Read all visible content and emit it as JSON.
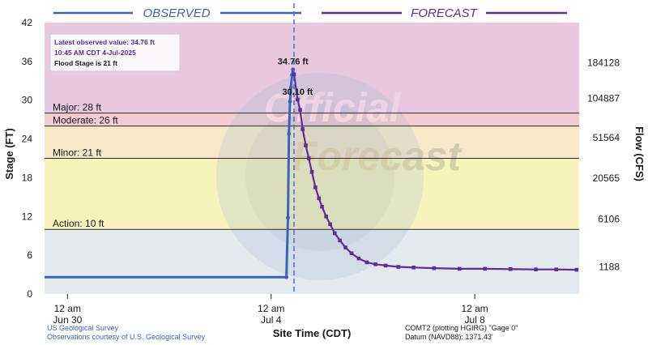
{
  "chart_data": {
    "type": "line",
    "header": {
      "observed_label": "OBSERVED",
      "forecast_label": "FORECAST"
    },
    "ylabel": "Stage (FT)",
    "ylabel_right": "Flow (CFS)",
    "xlabel": "Site Time (CDT)",
    "ylim": [
      0,
      42
    ],
    "y_ticks": [
      0,
      6,
      12,
      18,
      24,
      30,
      36,
      42
    ],
    "right_ticks": [
      {
        "stage": 4.2,
        "label": "1188"
      },
      {
        "stage": 11.6,
        "label": "6106"
      },
      {
        "stage": 17.9,
        "label": "20565"
      },
      {
        "stage": 24.2,
        "label": "51564"
      },
      {
        "stage": 30.3,
        "label": "104887"
      },
      {
        "stage": 35.8,
        "label": "184128"
      }
    ],
    "x_ticks": [
      {
        "day": 0,
        "line1": "12 am",
        "line2": "Jun 30"
      },
      {
        "day": 4,
        "line1": "12 am",
        "line2": "Jul 4"
      },
      {
        "day": 8,
        "line1": "12 am",
        "line2": "Jul 8"
      }
    ],
    "xlim": [
      -0.45,
      10.05
    ],
    "current_time_day": 4.45,
    "bands": [
      {
        "from": 28,
        "to": 42,
        "color": "#e7c8de"
      },
      {
        "from": 26,
        "to": 28,
        "color": "#f2cdd0"
      },
      {
        "from": 21,
        "to": 26,
        "color": "#f7e8c8"
      },
      {
        "from": 10,
        "to": 21,
        "color": "#f6f3bd"
      },
      {
        "from": 0,
        "to": 10,
        "color": "#e4e9ee"
      }
    ],
    "flood_lines": [
      {
        "stage": 28,
        "label": "Major: 28 ft"
      },
      {
        "stage": 26,
        "label": "Moderate: 26 ft"
      },
      {
        "stage": 21,
        "label": "Minor: 21 ft"
      },
      {
        "stage": 10,
        "label": "Action: 10 ft"
      }
    ],
    "info_box": {
      "line1": "Latest observed value: 34.76 ft",
      "line2": "10:45 AM CDT 4-Jul-2025",
      "line3": "Flood Stage is 21 ft"
    },
    "annotations": [
      {
        "x": 4.43,
        "y": 34.76,
        "text": "34.76 ft"
      },
      {
        "x": 4.52,
        "y": 30.1,
        "text": "30.10 ft"
      }
    ],
    "series": [
      {
        "name": "Observed",
        "color": "#3a63b8",
        "x": [
          -0.45,
          0.5,
          1.5,
          2.5,
          3.5,
          4.0,
          4.3,
          4.33,
          4.35,
          4.37,
          4.39,
          4.41,
          4.43
        ],
        "y": [
          2.6,
          2.6,
          2.6,
          2.6,
          2.6,
          2.6,
          2.6,
          11.8,
          24.8,
          29.8,
          32.0,
          33.9,
          34.76
        ]
      },
      {
        "name": "Forecast",
        "color": "#5e2d97",
        "x": [
          4.45,
          4.52,
          4.57,
          4.62,
          4.68,
          4.74,
          4.8,
          4.87,
          4.94,
          5.0,
          5.08,
          5.16,
          5.25,
          5.35,
          5.46,
          5.58,
          5.72,
          5.88,
          6.05,
          6.25,
          6.5,
          6.8,
          7.2,
          7.7,
          8.2,
          8.7,
          9.2,
          9.6,
          10.0
        ],
        "y": [
          34.0,
          30.1,
          28.5,
          25.5,
          23.0,
          21.0,
          18.9,
          16.5,
          14.8,
          13.5,
          12.0,
          10.8,
          9.4,
          8.3,
          7.2,
          6.3,
          5.5,
          4.9,
          4.6,
          4.4,
          4.2,
          4.1,
          4.0,
          3.9,
          3.9,
          3.85,
          3.8,
          3.8,
          3.75
        ]
      }
    ],
    "footer": {
      "left1": "US Geological Survey",
      "left2": "Observations courtesy of U.S. Geological Survey",
      "right1": "COMT2 (plotting HGIRG) \"Gage 0\"",
      "right2": "Datum (NAVD88): 1371.43'"
    },
    "watermark": {
      "word1": "Official",
      "word2": "Forecast"
    }
  }
}
